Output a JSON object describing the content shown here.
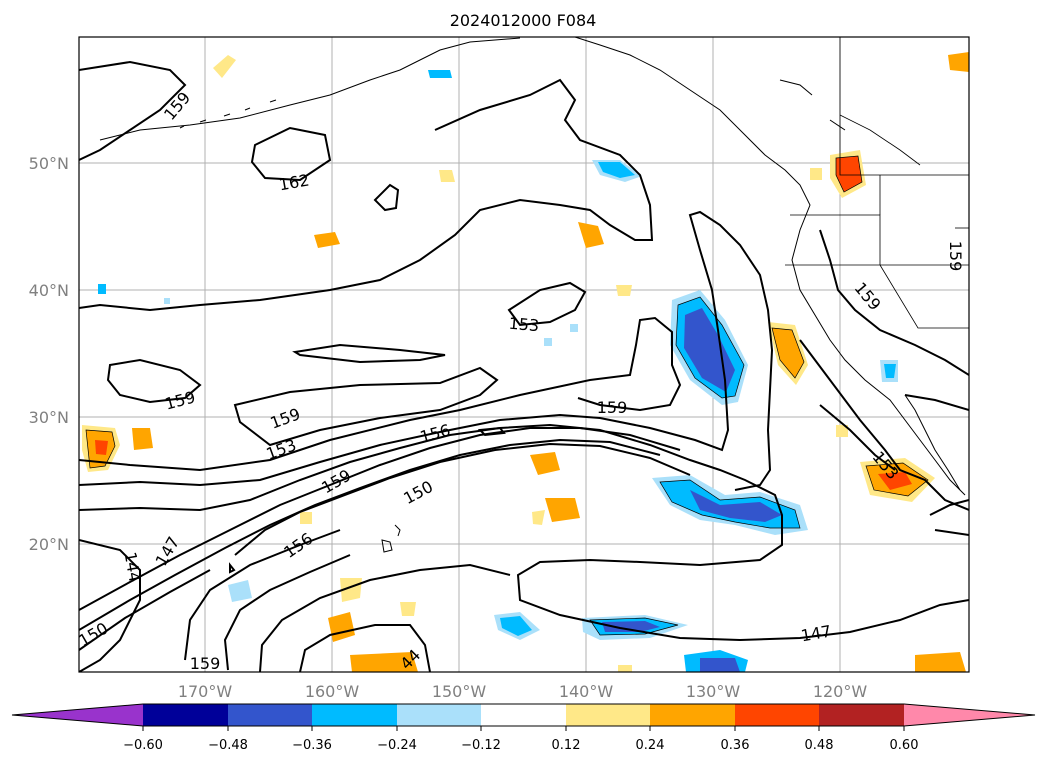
{
  "title": "2024012000 F084",
  "map": {
    "lat_labels": [
      "50°N",
      "40°N",
      "30°N",
      "20°N"
    ],
    "lon_labels": [
      "170°W",
      "160°W",
      "150°W",
      "140°W",
      "130°W",
      "120°W"
    ],
    "contour_labels": [
      "159",
      "162",
      "153",
      "159",
      "159",
      "153",
      "156",
      "159",
      "150",
      "156",
      "147",
      "144",
      "150",
      "159",
      "44",
      "147",
      "153",
      "159",
      "159",
      "159"
    ]
  },
  "colorbar": {
    "tick_labels": [
      "−0.60",
      "−0.48",
      "−0.36",
      "−0.24",
      "−0.12",
      "0.12",
      "0.24",
      "0.36",
      "0.48",
      "0.60"
    ],
    "colors": [
      "#9933cc",
      "#000099",
      "#3355cc",
      "#00bbff",
      "#aae0fa",
      "#ffffff",
      "#ffe888",
      "#ffa500",
      "#ff4500",
      "#b22222",
      "#ff88aa"
    ]
  }
}
